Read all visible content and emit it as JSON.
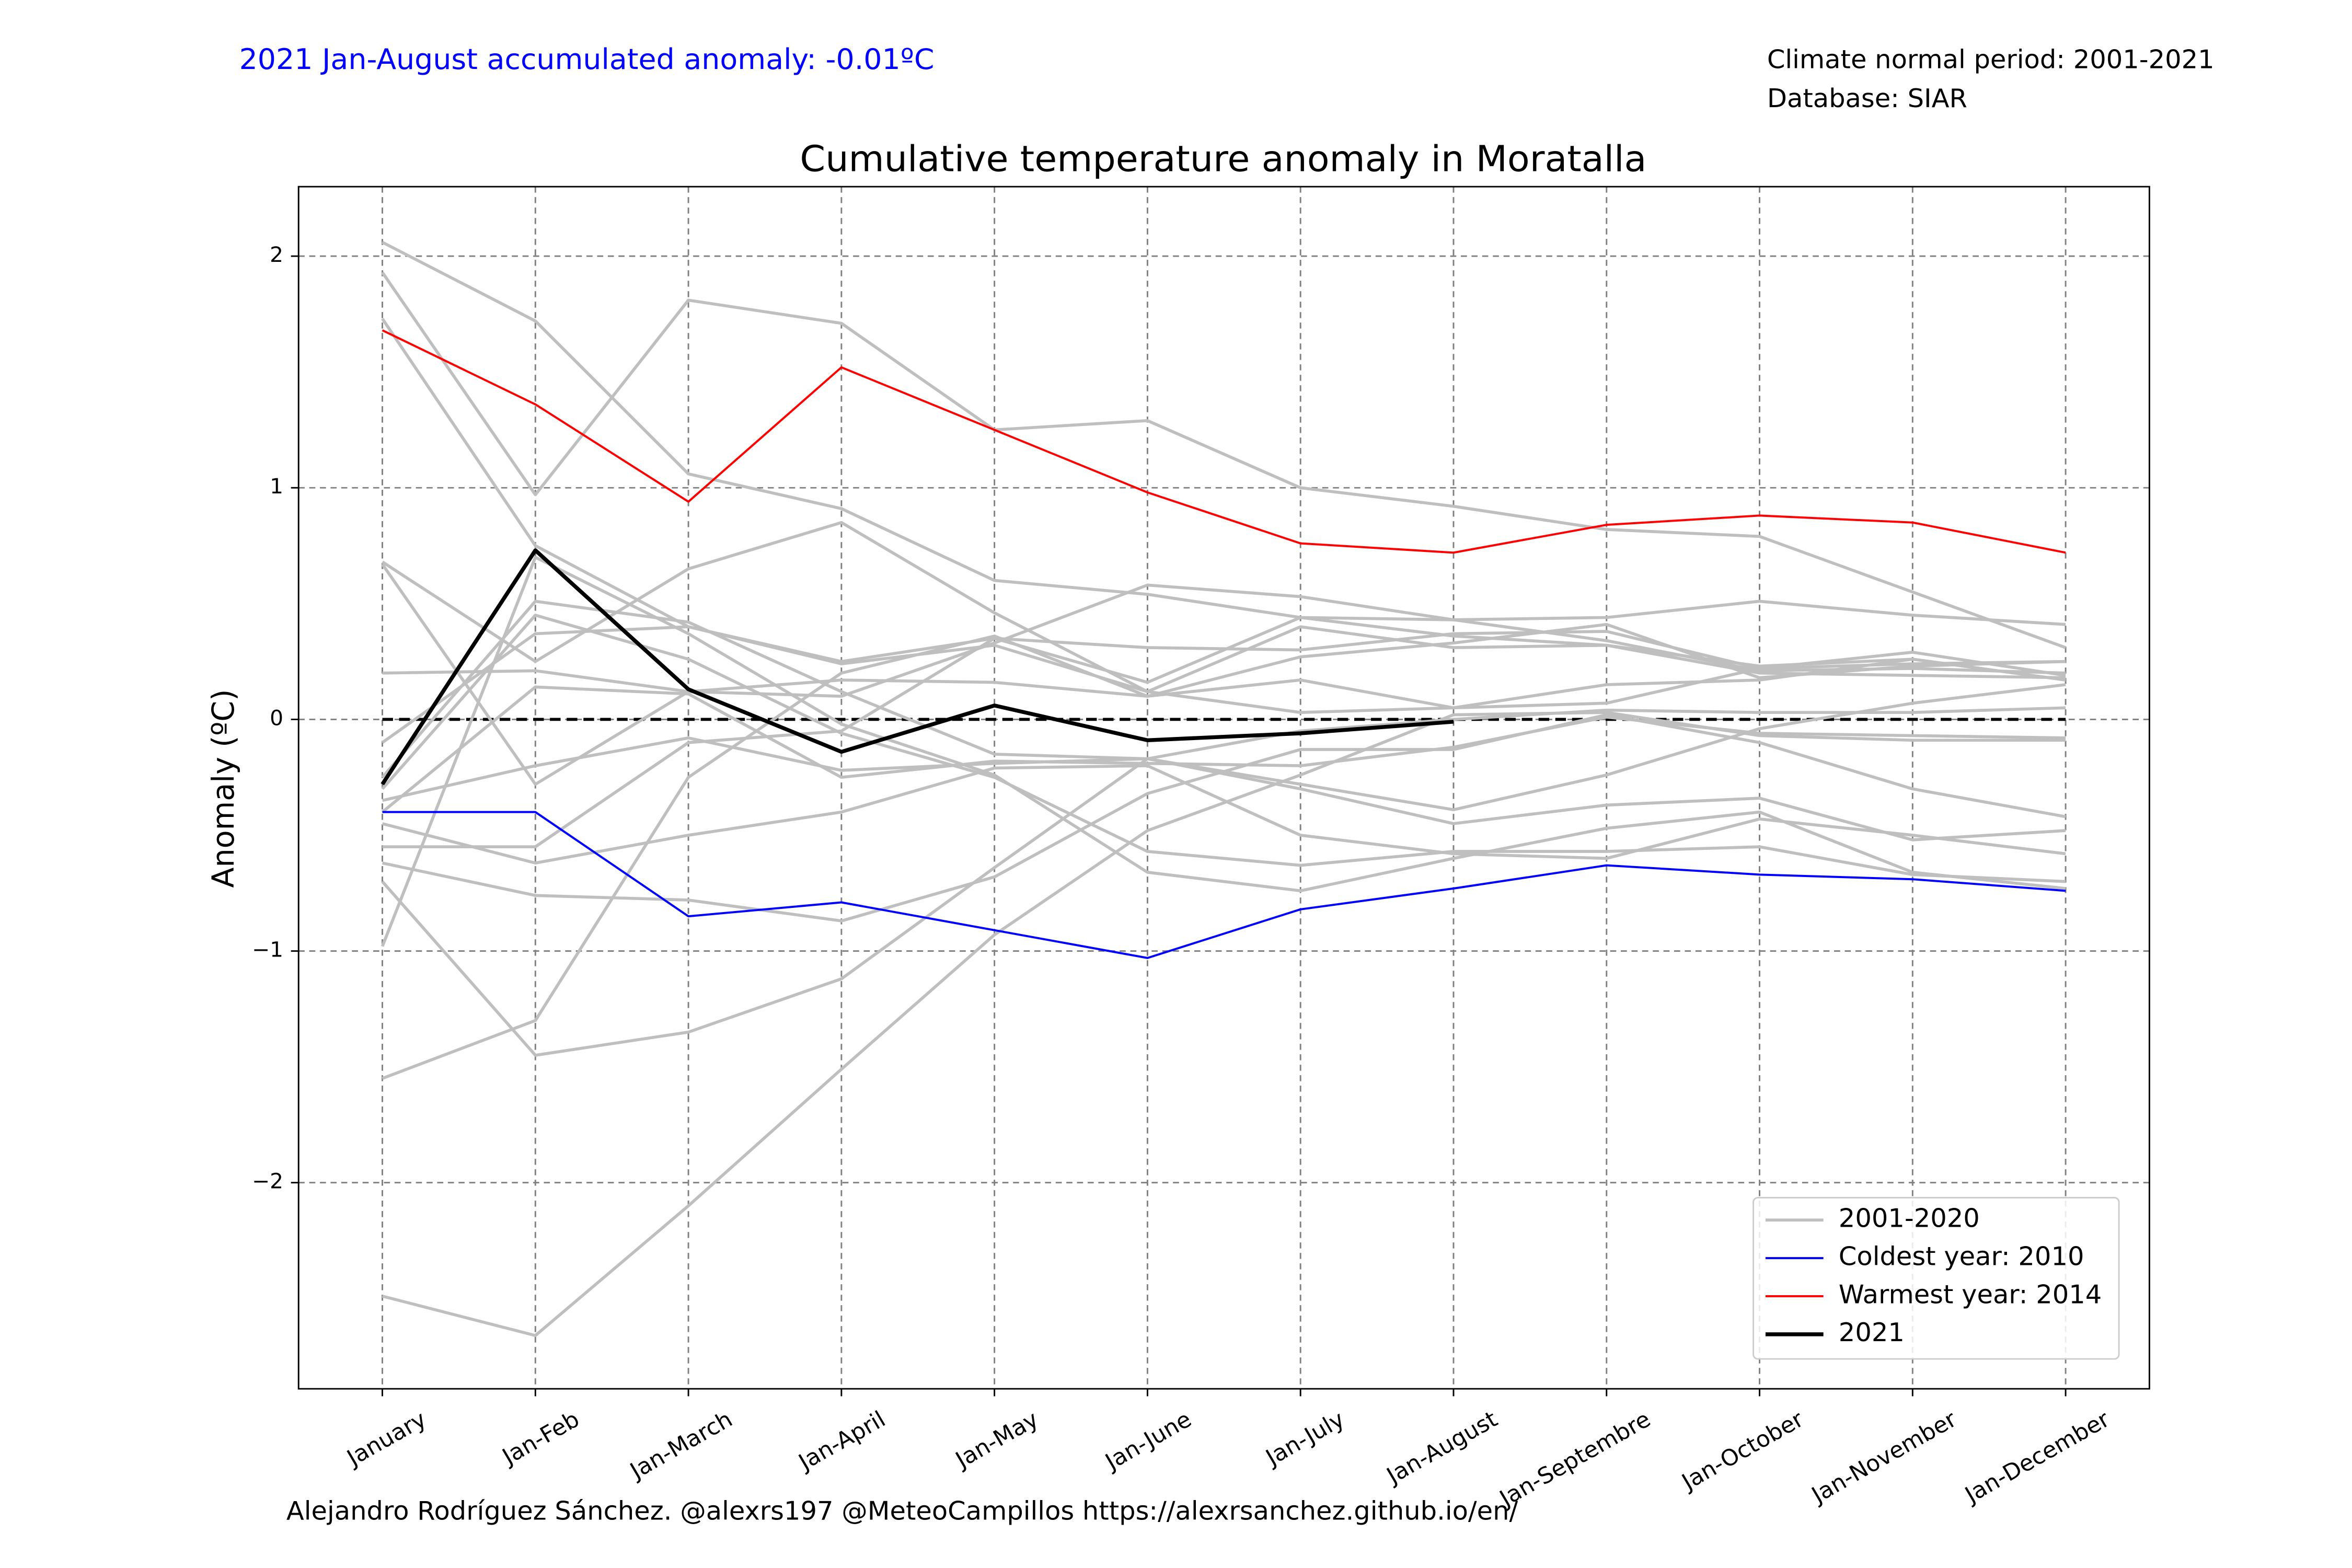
{
  "chart_data": {
    "type": "line",
    "title": "Cumulative temperature anomaly in Moratalla",
    "annotation": "2021 Jan-August accumulated anomaly: -0.01ºC",
    "info": [
      "Climate normal period: 2001-2021",
      "Database: SIAR"
    ],
    "footer": "Alejandro Rodríguez Sánchez. @alexrs197 @MeteoCampillos   https://alexrsanchez.github.io/en/",
    "ylabel": "Anomaly (ºC)",
    "categories": [
      "January",
      "Jan-Feb",
      "Jan-March",
      "Jan-April",
      "Jan-May",
      "Jan-June",
      "Jan-July",
      "Jan-August",
      "Jan-Septembre",
      "Jan-October",
      "Jan-November",
      "Jan-December"
    ],
    "ylim": [
      -2.89,
      2.3
    ],
    "yticks": [
      {
        "value": -2,
        "label": "−2"
      },
      {
        "value": -1,
        "label": "−1"
      },
      0,
      1,
      2
    ],
    "grid": true,
    "reference_line": 0,
    "legend": "lower right",
    "series": [
      {
        "name": "2001-2020",
        "color": "#bfbfbf",
        "lines": [
          [
            2.06,
            1.72,
            1.06,
            0.91,
            0.6,
            0.54,
            0.44,
            0.43,
            0.44,
            0.51,
            0.45,
            0.41
          ],
          [
            1.93,
            0.97,
            1.81,
            1.71,
            1.25,
            1.29,
            1.0,
            0.92,
            0.82,
            0.79,
            0.55,
            0.31
          ],
          [
            1.73,
            0.75,
            0.4,
            0.25,
            0.35,
            0.31,
            0.3,
            0.37,
            0.38,
            0.22,
            0.29,
            0.19
          ],
          [
            0.68,
            0.25,
            0.65,
            0.85,
            0.46,
            0.12,
            0.03,
            0.05,
            0.07,
            0.22,
            0.24,
            0.25
          ],
          [
            0.67,
            -0.28,
            0.12,
            0.17,
            0.16,
            0.1,
            0.17,
            0.05,
            0.15,
            0.17,
            0.26,
            0.17
          ],
          [
            0.2,
            0.21,
            0.12,
            0.1,
            0.33,
            0.58,
            0.53,
            0.43,
            0.34,
            0.21,
            0.22,
            0.2
          ],
          [
            -0.25,
            0.51,
            0.42,
            0.12,
            -0.15,
            -0.17,
            -0.3,
            -0.45,
            -0.37,
            -0.34,
            -0.52,
            -0.48
          ],
          [
            -0.3,
            0.45,
            0.26,
            -0.06,
            -0.25,
            -0.57,
            -0.63,
            -0.57,
            -0.57,
            -0.55,
            -0.67,
            -0.7
          ],
          [
            -0.55,
            -0.55,
            -0.1,
            -0.05,
            0.35,
            0.16,
            0.44,
            0.36,
            0.32,
            0.23,
            0.26,
            0.17
          ],
          [
            -0.62,
            -0.76,
            -0.78,
            -0.87,
            -0.68,
            -0.32,
            -0.13,
            -0.13,
            0.02,
            -0.1,
            -0.3,
            -0.42
          ],
          [
            -0.98,
            0.7,
            0.37,
            -0.02,
            -0.24,
            -0.66,
            -0.74,
            -0.6,
            -0.47,
            -0.4,
            -0.66,
            -0.73
          ],
          [
            -1.55,
            -1.3,
            -0.25,
            0.2,
            0.36,
            0.1,
            0.27,
            0.33,
            0.41,
            0.18,
            0.23,
            0.25
          ],
          [
            -2.49,
            -2.66,
            -2.1,
            -1.51,
            -0.93,
            -0.48,
            -0.24,
            0.02,
            0.03,
            -0.07,
            -0.09,
            -0.09
          ],
          [
            -0.7,
            -1.45,
            -1.35,
            -1.12,
            -0.64,
            -0.17,
            -0.05,
            0.0,
            0.04,
            0.03,
            0.03,
            0.05
          ],
          [
            -0.35,
            -0.2,
            -0.08,
            -0.22,
            -0.19,
            -0.17,
            -0.28,
            -0.39,
            -0.24,
            -0.04,
            0.07,
            0.15
          ],
          [
            -0.45,
            -0.62,
            -0.5,
            -0.4,
            -0.21,
            -0.2,
            -0.5,
            -0.58,
            -0.6,
            -0.43,
            -0.5,
            -0.58
          ],
          [
            -0.1,
            0.37,
            0.4,
            0.24,
            0.32,
            0.12,
            0.4,
            0.31,
            0.32,
            0.2,
            0.19,
            0.18
          ],
          [
            -0.4,
            0.14,
            0.11,
            -0.25,
            -0.18,
            -0.19,
            -0.2,
            -0.12,
            0.01,
            -0.06,
            -0.07,
            -0.08
          ]
        ]
      },
      {
        "name": "Coldest year: 2010",
        "color": "#0000ff",
        "values": [
          -0.4,
          -0.4,
          -0.85,
          -0.79,
          -0.91,
          -1.03,
          -0.82,
          -0.73,
          -0.63,
          -0.67,
          -0.69,
          -0.74
        ]
      },
      {
        "name": "Warmest year: 2014",
        "color": "#ff0000",
        "values": [
          1.68,
          1.36,
          0.94,
          1.52,
          1.25,
          0.98,
          0.76,
          0.72,
          0.84,
          0.88,
          0.85,
          0.72
        ]
      },
      {
        "name": "2021",
        "color": "#000000",
        "values": [
          -0.28,
          0.73,
          0.13,
          -0.14,
          0.06,
          -0.09,
          -0.06,
          -0.01,
          null,
          null,
          null,
          null
        ]
      }
    ]
  }
}
